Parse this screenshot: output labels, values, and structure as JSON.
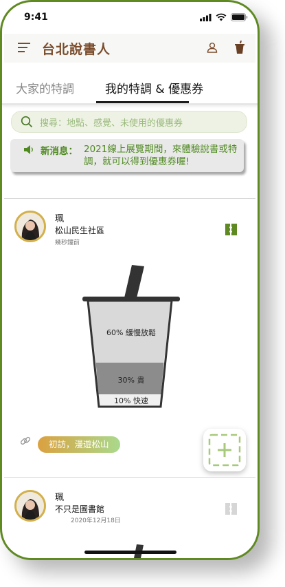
{
  "status": {
    "time": "9:41"
  },
  "app": {
    "title": "台北說書人"
  },
  "tabs": [
    {
      "label": "大家的特調",
      "active": false
    },
    {
      "label": "我的特調 & 優惠券",
      "active": true
    }
  ],
  "search": {
    "placeholder": "搜尋：地點、感覺、未使用的優惠券"
  },
  "news": {
    "heading": "新消息：",
    "text": "2021線上展覽期間，來體驗說書或特調，就可以得到優惠券喔!"
  },
  "posts": [
    {
      "user": "珮",
      "place": "松山民生社區",
      "time": "幾秒鐘前",
      "cup": {
        "segments": [
          {
            "label": "60% 緩慢放鬆",
            "percent": 60,
            "color": "#d9d9d9"
          },
          {
            "label": "30% 貴",
            "percent": 30,
            "color": "#8c8c8c"
          },
          {
            "label": "10% 快速",
            "percent": 10,
            "color": "#f0f0f0"
          }
        ]
      },
      "tag": "初訪，漫遊松山"
    },
    {
      "user": "珮",
      "place": "不只是圖書館",
      "time": "2020年12月18日"
    }
  ],
  "colors": {
    "brand": "#7a4c2c",
    "accent_green": "#4f8a20",
    "frame": "#5f8a22",
    "ticket_active": "#5f8a22",
    "ticket_inactive": "#d6d6d6"
  }
}
